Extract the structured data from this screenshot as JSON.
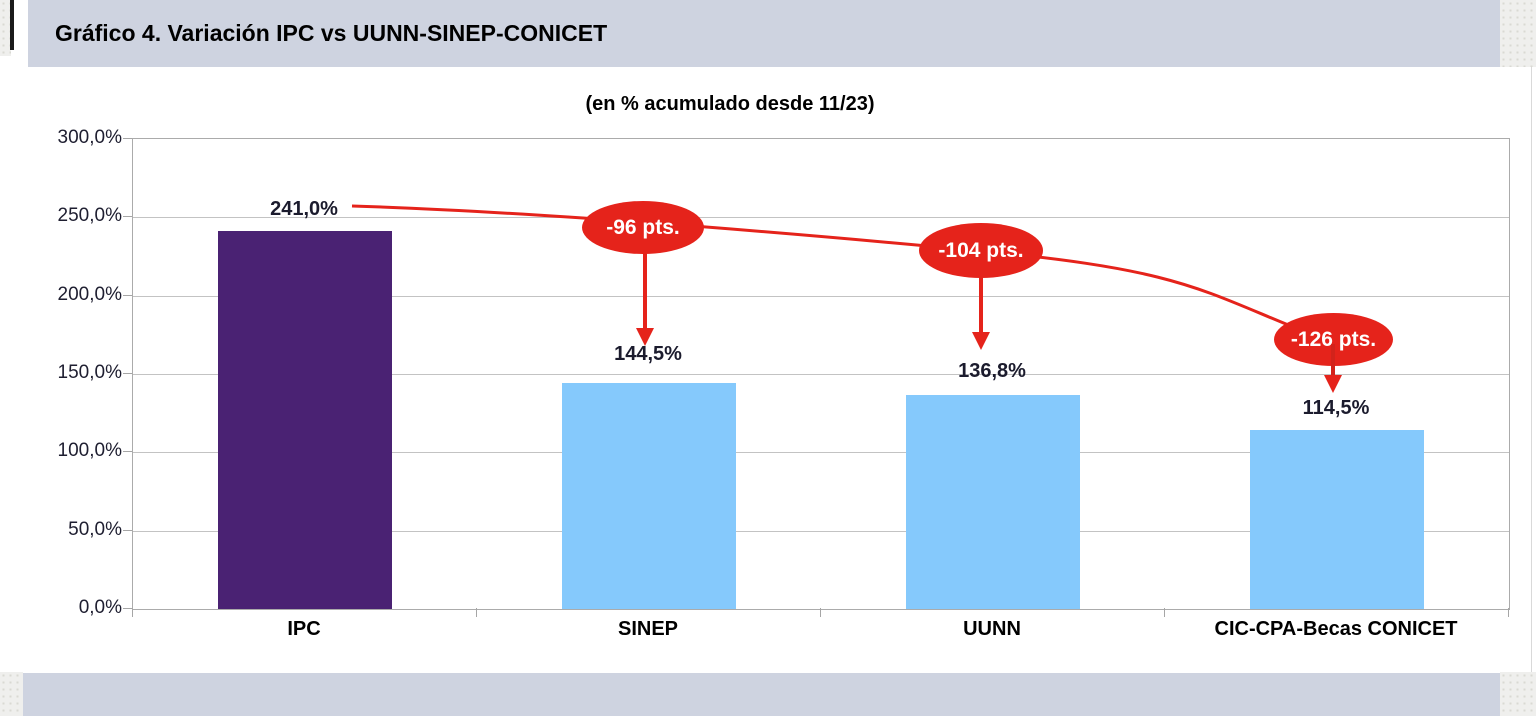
{
  "header": {
    "title": "Gráfico 4. Variación IPC vs UUNN-SINEP-CONICET"
  },
  "chart_data": {
    "type": "bar",
    "title": "Gráfico 4. Variación IPC vs UUNN-SINEP-CONICET",
    "subtitle": "(en % acumulado desde 11/23)",
    "categories": [
      "IPC",
      "SINEP",
      "UUNN",
      "CIC-CPA-Becas CONICET"
    ],
    "values": [
      241.0,
      144.5,
      136.8,
      114.5
    ],
    "value_labels": [
      "241,0%",
      "144,5%",
      "136,8%",
      "114,5%"
    ],
    "ylim": [
      0,
      300
    ],
    "ytick_labels": [
      "300,0%",
      "250,0%",
      "200,0%",
      "150,0%",
      "100,0%",
      "50,0%",
      "0,0%"
    ],
    "grid": true,
    "legend": "none",
    "bar_colors": [
      "#4A2273",
      "#85C9FC",
      "#85C9FC",
      "#85C9FC"
    ],
    "annotations": [
      {
        "label": "-96 pts.",
        "target": "SINEP"
      },
      {
        "label": "-104 pts.",
        "target": "UUNN"
      },
      {
        "label": "-126 pts.",
        "target": "CIC-CPA-Becas CONICET"
      }
    ],
    "colors": {
      "annotation_red": "#E5231B",
      "header_bar": "#CED3E0",
      "gridline": "#C3C3C3",
      "axis": "#ABABAB"
    }
  }
}
